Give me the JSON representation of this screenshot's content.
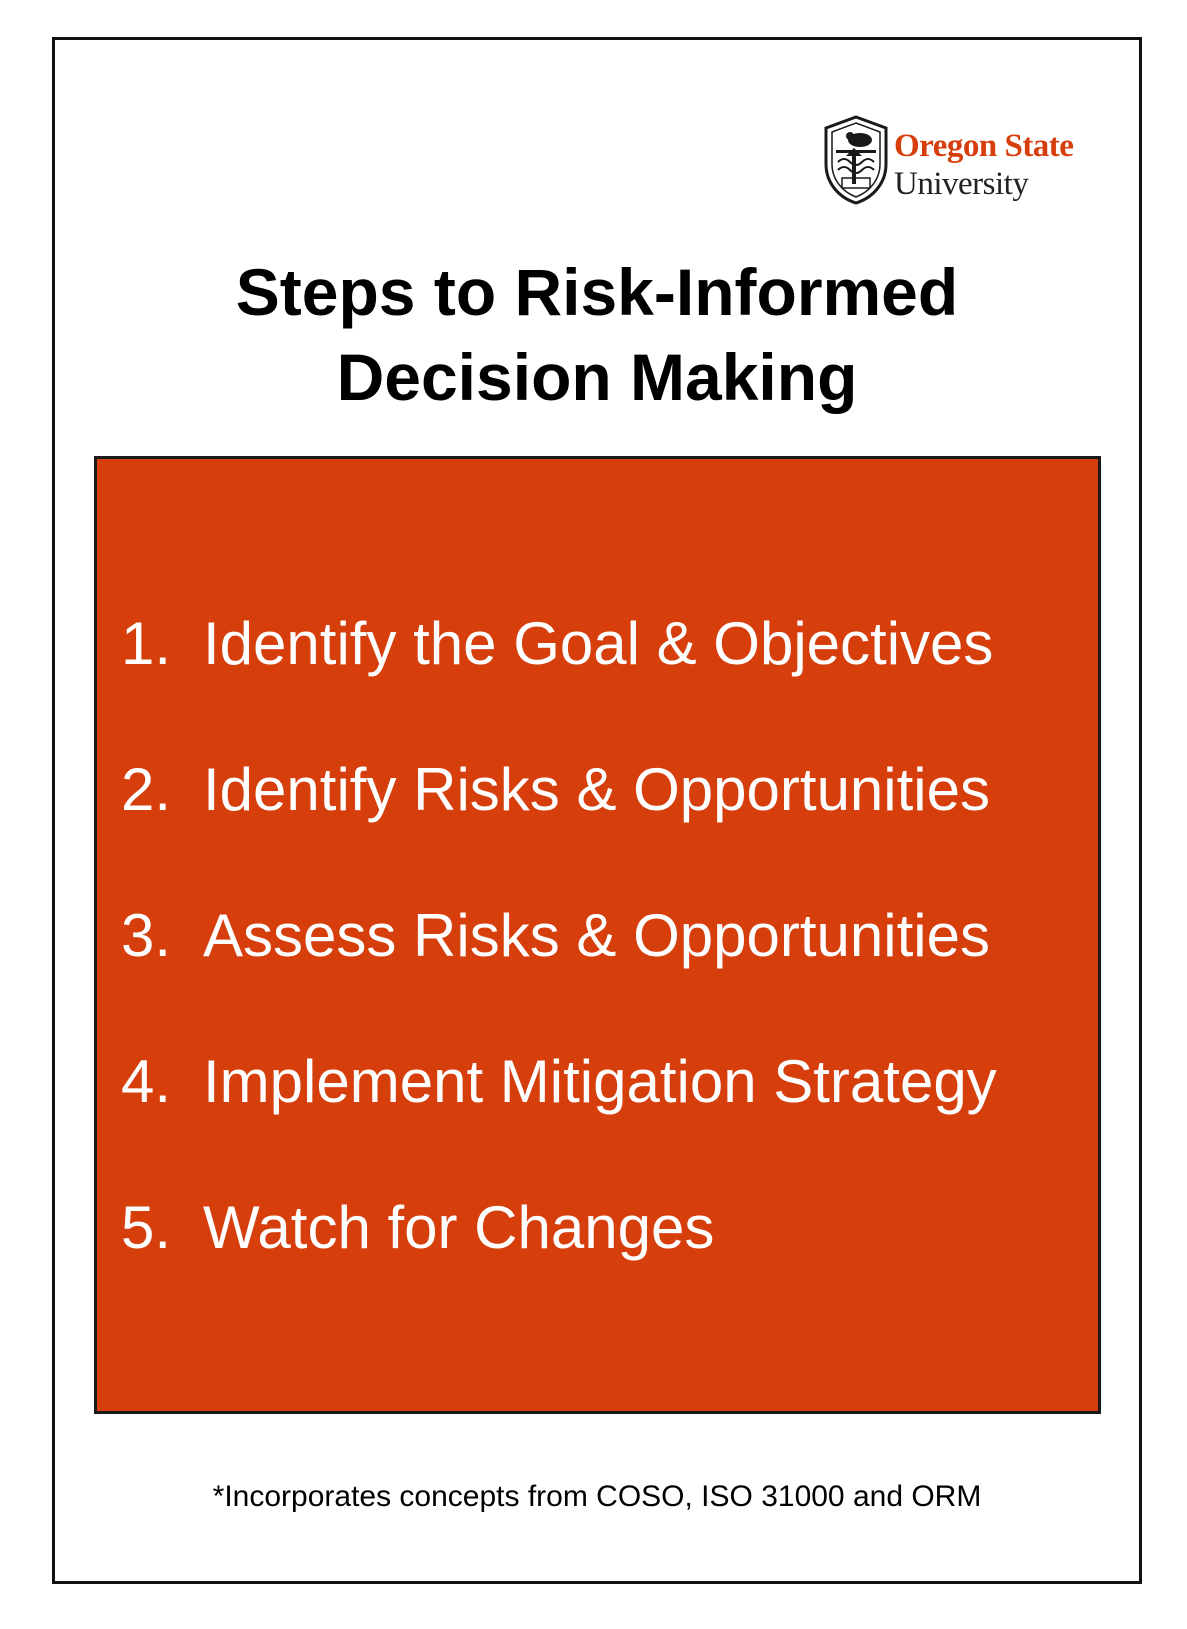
{
  "colors": {
    "accent": "#D63E0C",
    "text": "#000000",
    "step_text": "#FFFFFF",
    "frame": "#111111"
  },
  "logo": {
    "icon": "osu-seal-icon",
    "line1": "Oregon State",
    "line2": "University"
  },
  "title": {
    "line1": "Steps to Risk-Informed",
    "line2": "Decision Making"
  },
  "steps": [
    {
      "number": "1.",
      "text": "Identify the Goal & Objectives"
    },
    {
      "number": "2.",
      "text": "Identify Risks & Opportunities"
    },
    {
      "number": "3.",
      "text": "Assess Risks & Opportunities"
    },
    {
      "number": "4.",
      "text": "Implement Mitigation Strategy"
    },
    {
      "number": "5.",
      "text": "Watch for Changes"
    }
  ],
  "footnote": "*Incorporates concepts from COSO, ISO 31000 and ORM"
}
